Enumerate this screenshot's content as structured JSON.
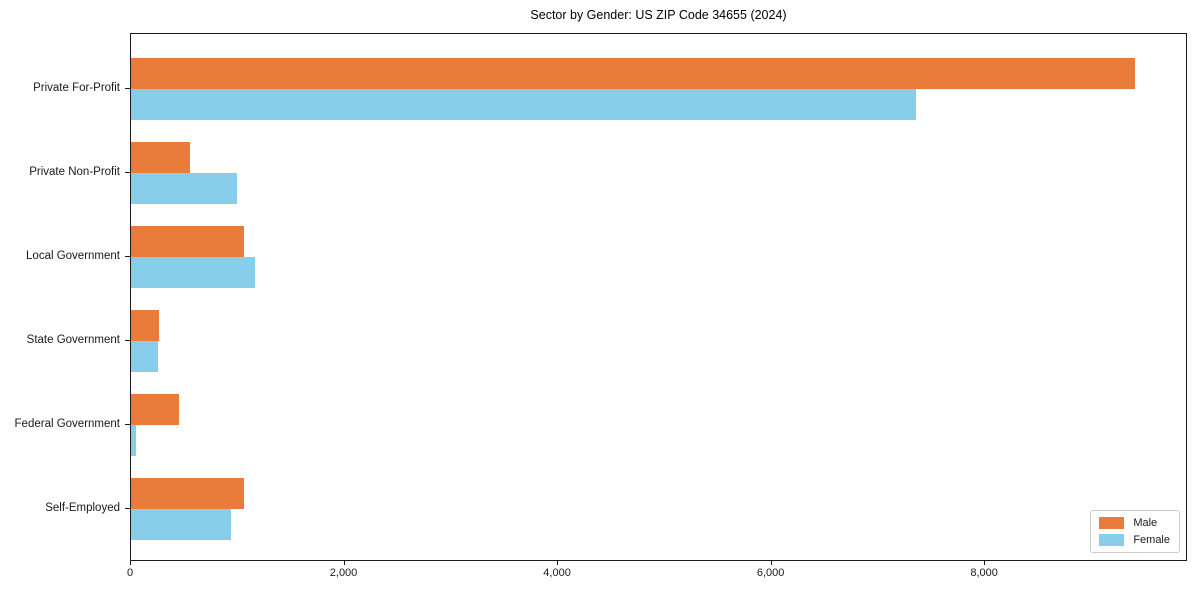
{
  "title": "Sector by Gender: US ZIP Code 34655 (2024)",
  "colors": {
    "male": "#E97C3A",
    "female": "#87CEEB",
    "axis": "#1a1a1a",
    "legend_border": "#cccccc",
    "background": "#ffffff"
  },
  "chart_data": {
    "type": "bar",
    "orientation": "horizontal",
    "title": "Sector by Gender: US ZIP Code 34655 (2024)",
    "xlabel": "",
    "ylabel": "",
    "categories": [
      "Private For-Profit",
      "Private Non-Profit",
      "Local Government",
      "State Government",
      "Federal Government",
      "Self-Employed"
    ],
    "series": [
      {
        "name": "Male",
        "color": "#E97C3A",
        "values": [
          9420,
          550,
          1060,
          260,
          450,
          1060
        ]
      },
      {
        "name": "Female",
        "color": "#87CEEB",
        "values": [
          7370,
          990,
          1160,
          250,
          50,
          940
        ]
      }
    ],
    "xlim": [
      0,
      9900
    ],
    "xticks": [
      0,
      2000,
      4000,
      6000,
      8000
    ],
    "xtick_labels": [
      "0",
      "2,000",
      "4,000",
      "6,000",
      "8,000"
    ],
    "grid": false,
    "legend_position": "lower right"
  }
}
